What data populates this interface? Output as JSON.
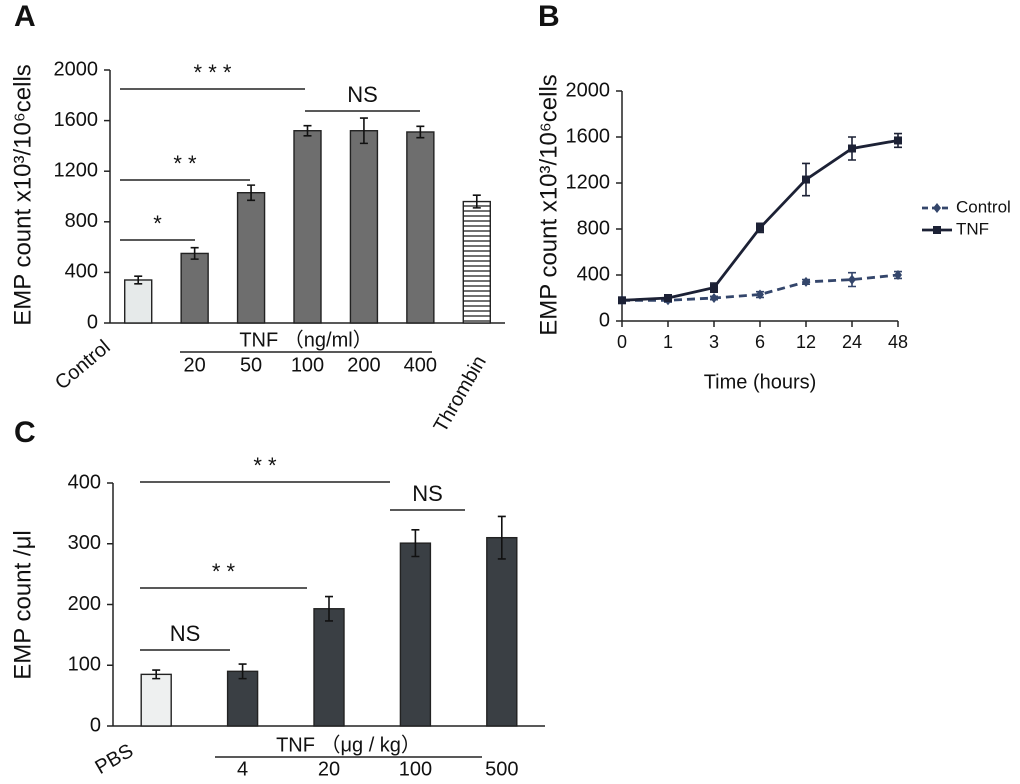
{
  "chart_data": [
    {
      "type": "bar",
      "label": "A",
      "y_label": "EMP count x10³/10⁶cells",
      "categories": [
        "Control",
        "20",
        "50",
        "100",
        "200",
        "400",
        "Thrombin"
      ],
      "group_label": "TNF （ng/ml）",
      "values": [
        340,
        550,
        1030,
        1520,
        1520,
        1510,
        960
      ],
      "errors": [
        30,
        45,
        60,
        40,
        100,
        45,
        50
      ],
      "colors": [
        "#e6eaea",
        "#6e6e6e",
        "#6e6e6e",
        "#6e6e6e",
        "#6e6e6e",
        "#6e6e6e",
        "#ffffff"
      ],
      "hatched": [
        false,
        false,
        false,
        false,
        false,
        false,
        true
      ],
      "ylim": [
        0,
        2000
      ],
      "yticks": [
        0,
        400,
        800,
        1200,
        1600,
        2000
      ],
      "annotations": [
        "* * *",
        "NS",
        "* *",
        "*"
      ]
    },
    {
      "type": "line",
      "label": "B",
      "y_label": "EMP count x10³/10⁶cells",
      "x_label": "Time (hours)",
      "categories": [
        "0",
        "1",
        "3",
        "6",
        "12",
        "24",
        "48"
      ],
      "series": [
        {
          "name": "Control",
          "color": "#34466b",
          "dashed": true,
          "marker": "diamond",
          "values": [
            180,
            180,
            200,
            230,
            340,
            360,
            400
          ],
          "errors": [
            20,
            15,
            15,
            25,
            20,
            60,
            30
          ]
        },
        {
          "name": "TNF",
          "color": "#1c2135",
          "dashed": false,
          "marker": "square",
          "values": [
            180,
            200,
            290,
            810,
            1230,
            1500,
            1570
          ],
          "errors": [
            20,
            15,
            40,
            40,
            140,
            100,
            60
          ]
        }
      ],
      "ylim": [
        0,
        2000
      ],
      "yticks": [
        0,
        400,
        800,
        1200,
        1600,
        2000
      ],
      "legend": "right"
    },
    {
      "type": "bar",
      "label": "C",
      "y_label": "EMP count /μl",
      "categories": [
        "PBS",
        "4",
        "20",
        "100",
        "500"
      ],
      "group_label": "TNF （μg / kg）",
      "values": [
        85,
        90,
        193,
        301,
        310
      ],
      "errors": [
        7,
        12,
        20,
        22,
        35
      ],
      "colors": [
        "#eef0f0",
        "#3a3f44",
        "#3a3f44",
        "#3a3f44",
        "#3a3f44"
      ],
      "hatched": [
        false,
        false,
        false,
        false,
        false
      ],
      "ylim": [
        0,
        400
      ],
      "yticks": [
        0,
        100,
        200,
        300,
        400
      ],
      "annotations": [
        "* *",
        "NS",
        "* *",
        "NS"
      ]
    }
  ]
}
